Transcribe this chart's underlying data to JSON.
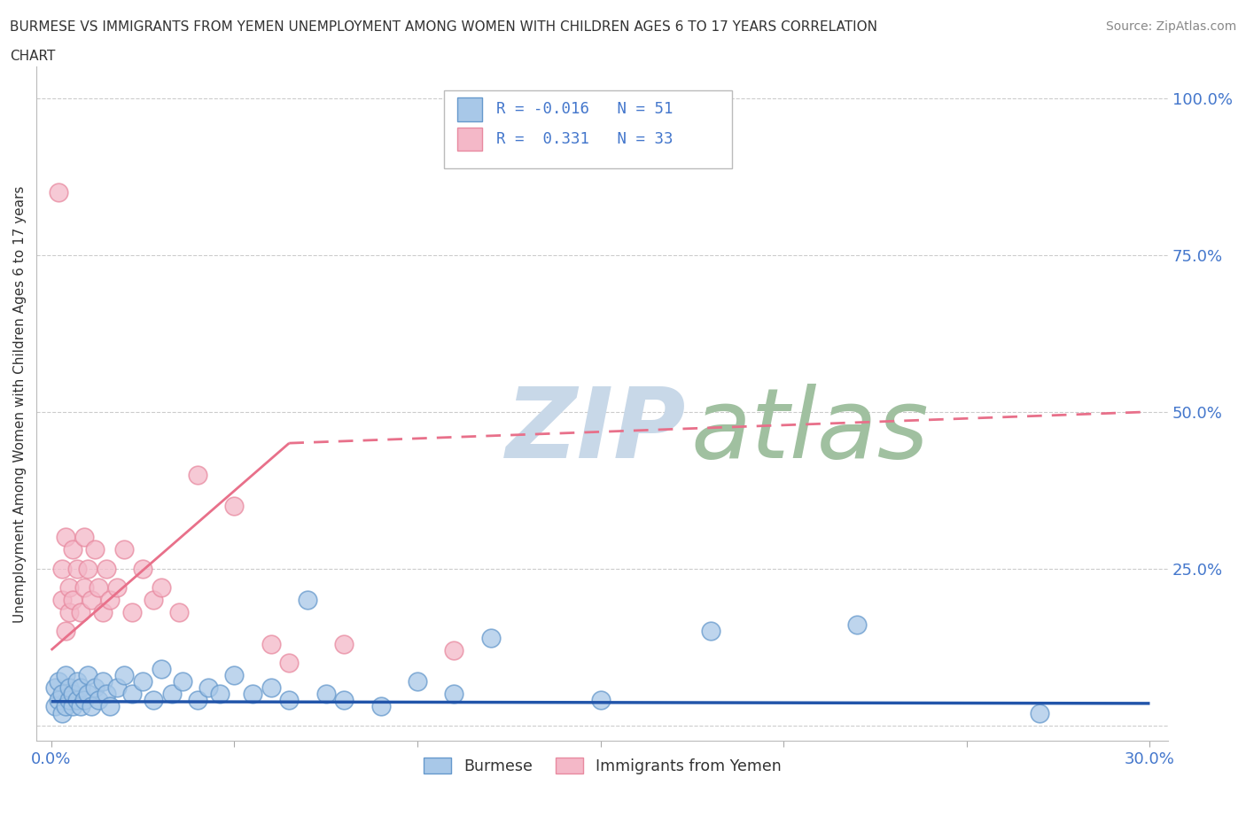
{
  "title_line1": "BURMESE VS IMMIGRANTS FROM YEMEN UNEMPLOYMENT AMONG WOMEN WITH CHILDREN AGES 6 TO 17 YEARS CORRELATION",
  "title_line2": "CHART",
  "source": "Source: ZipAtlas.com",
  "ylabel": "Unemployment Among Women with Children Ages 6 to 17 years",
  "burmese_color": "#A8C8E8",
  "burmese_edge_color": "#6699CC",
  "yemen_color": "#F4B8C8",
  "yemen_edge_color": "#E88AA0",
  "trendline_burmese_color": "#2255AA",
  "trendline_yemen_color": "#E8708A",
  "watermark_zip": "ZIP",
  "watermark_atlas": "atlas",
  "watermark_color_zip": "#C8D8E8",
  "watermark_color_atlas": "#A0C0A0",
  "legend_R_burmese": "R = -0.016",
  "legend_N_burmese": "N = 51",
  "legend_R_yemen": "R =  0.331",
  "legend_N_yemen": "N = 33",
  "background_color": "#FFFFFF",
  "grid_color": "#CCCCCC",
  "tick_label_color": "#4477CC",
  "title_color": "#333333",
  "ylabel_color": "#333333",
  "burmese_label": "Burmese",
  "yemen_label": "Immigrants from Yemen"
}
